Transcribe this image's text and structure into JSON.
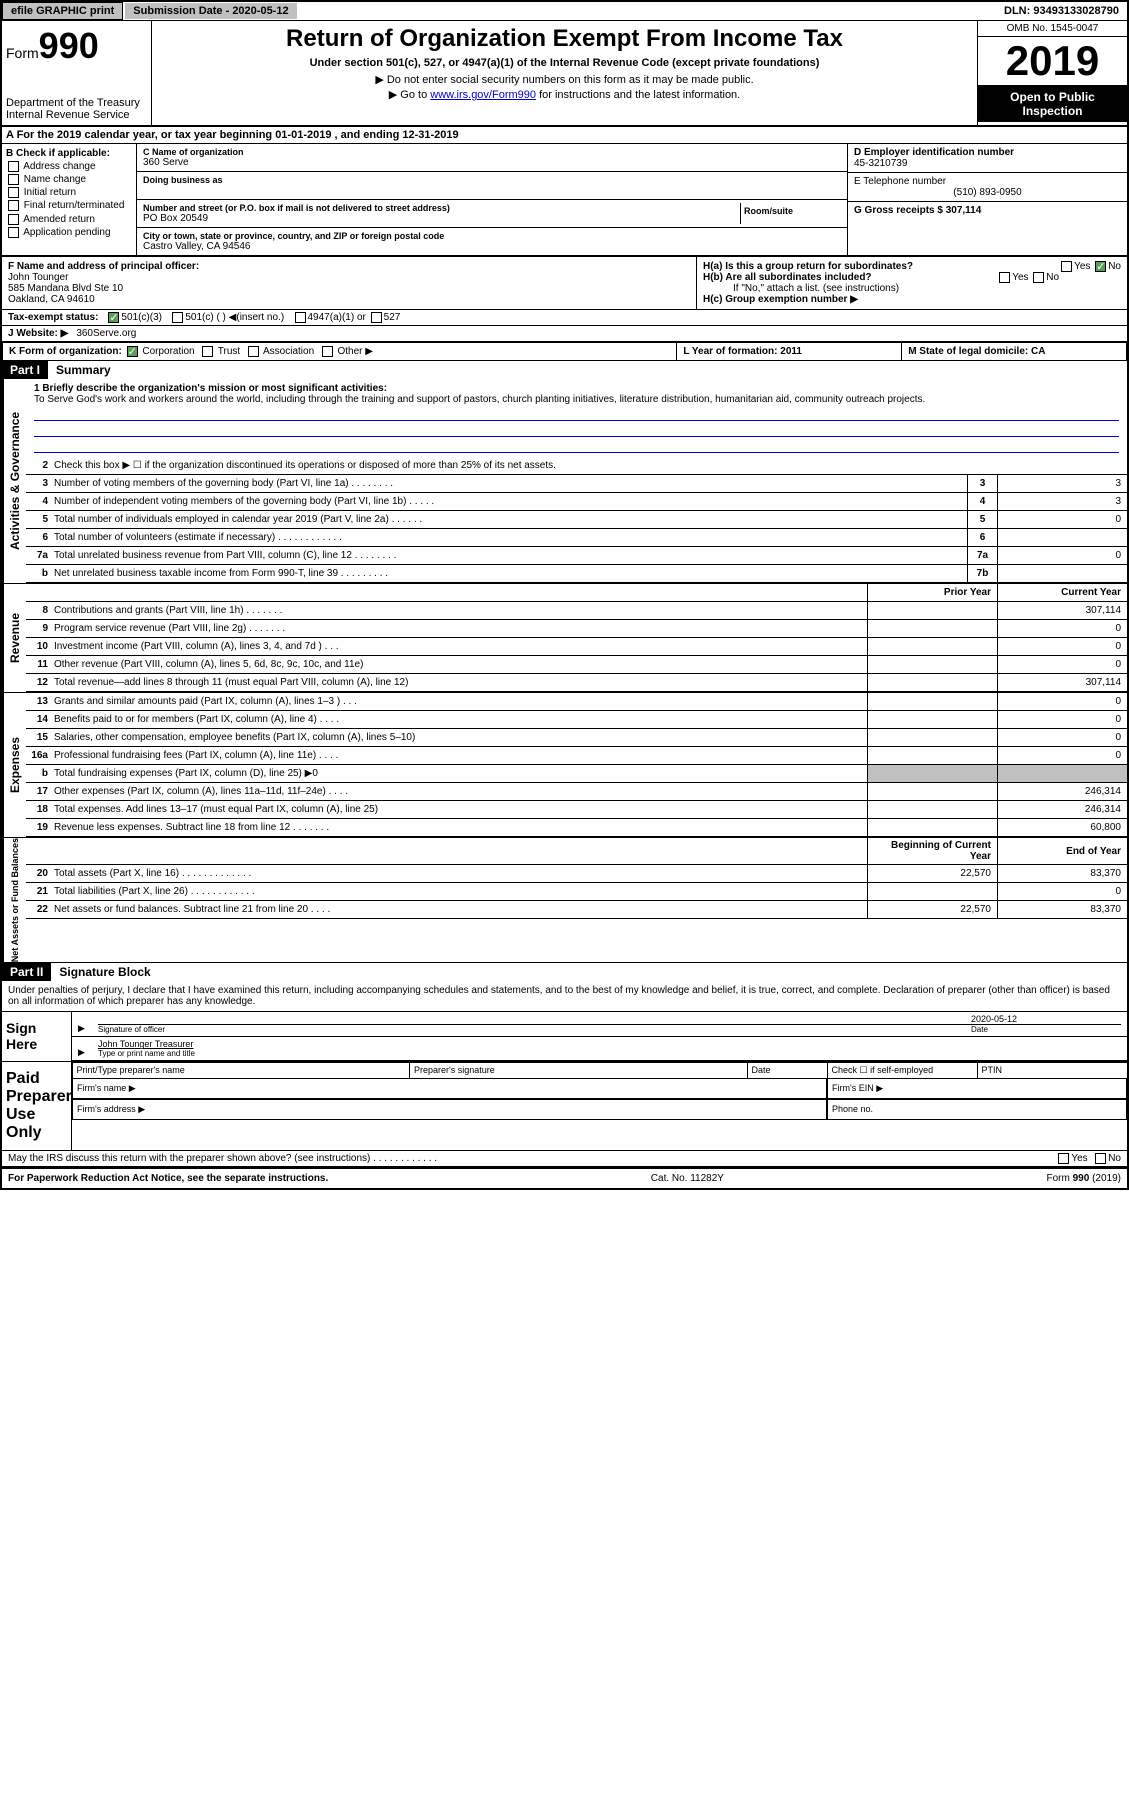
{
  "topbar": {
    "efile": "efile GRAPHIC print",
    "submission_label": "Submission Date - 2020-05-12",
    "dln": "DLN: 93493133028790"
  },
  "header": {
    "form_label": "Form",
    "form_number": "990",
    "dept1": "Department of the Treasury",
    "dept2": "Internal Revenue Service",
    "title": "Return of Organization Exempt From Income Tax",
    "subtitle": "Under section 501(c), 527, or 4947(a)(1) of the Internal Revenue Code (except private foundations)",
    "instr1": "▶ Do not enter social security numbers on this form as it may be made public.",
    "instr2_pre": "▶ Go to ",
    "instr2_link": "www.irs.gov/Form990",
    "instr2_post": " for instructions and the latest information.",
    "omb": "OMB No. 1545-0047",
    "year": "2019",
    "open_public": "Open to Public Inspection"
  },
  "section_a": "A   For the 2019 calendar year, or tax year beginning 01-01-2019    , and ending 12-31-2019",
  "col_b": {
    "header": "B Check if applicable:",
    "items": [
      "Address change",
      "Name change",
      "Initial return",
      "Final return/terminated",
      "Amended return",
      "Application pending"
    ]
  },
  "col_c": {
    "name_label": "C Name of organization",
    "name": "360 Serve",
    "dba_label": "Doing business as",
    "addr_label": "Number and street (or P.O. box if mail is not delivered to street address)",
    "addr": "PO Box 20549",
    "room_label": "Room/suite",
    "city_label": "City or town, state or province, country, and ZIP or foreign postal code",
    "city": "Castro Valley, CA  94546"
  },
  "col_d": {
    "ein_label": "D Employer identification number",
    "ein": "45-3210739",
    "phone_label": "E Telephone number",
    "phone": "(510) 893-0950",
    "gross_label": "G Gross receipts $ 307,114"
  },
  "row_f": {
    "label": "F  Name and address of principal officer:",
    "name": "John Tounger",
    "addr1": "585 Mandana Blvd Ste 10",
    "addr2": "Oakland, CA  94610",
    "ha": "H(a)  Is this a group return for subordinates?",
    "hb": "H(b)  Are all subordinates included?",
    "hb_note": "If \"No,\" attach a list. (see instructions)",
    "hc": "H(c)  Group exemption number ▶",
    "yes": "Yes",
    "no": "No"
  },
  "tax_exempt": {
    "label": "Tax-exempt status:",
    "opt1": "501(c)(3)",
    "opt2": "501(c) (   ) ◀(insert no.)",
    "opt3": "4947(a)(1) or",
    "opt4": "527"
  },
  "website": {
    "label": "J   Website: ▶",
    "value": "360Serve.org"
  },
  "row_k": {
    "label": "K Form of organization:",
    "opts": [
      "Corporation",
      "Trust",
      "Association",
      "Other ▶"
    ],
    "l_label": "L Year of formation: 2011",
    "m_label": "M State of legal domicile: CA"
  },
  "part1": {
    "header": "Part I",
    "title": "Summary",
    "sidebar1": "Activities & Governance",
    "sidebar2": "Revenue",
    "sidebar3": "Expenses",
    "sidebar4": "Net Assets or Fund Balances",
    "line1_label": "1  Briefly describe the organization's mission or most significant activities:",
    "mission": "To Serve God's work and workers around the world, including through the training and support of pastors, church planting initiatives, literature distribution, humanitarian aid, community outreach projects.",
    "line2": "Check this box ▶ ☐  if the organization discontinued its operations or disposed of more than 25% of its net assets.",
    "lines_gov": [
      {
        "n": "3",
        "d": "Number of voting members of the governing body (Part VI, line 1a)   .   .   .   .   .   .   .   .",
        "b": "3",
        "v": "3"
      },
      {
        "n": "4",
        "d": "Number of independent voting members of the governing body (Part VI, line 1b)   .   .   .   .   .",
        "b": "4",
        "v": "3"
      },
      {
        "n": "5",
        "d": "Total number of individuals employed in calendar year 2019 (Part V, line 2a)   .   .   .   .   .   .",
        "b": "5",
        "v": "0"
      },
      {
        "n": "6",
        "d": "Total number of volunteers (estimate if necessary)   .   .   .   .   .   .   .   .   .   .   .   .",
        "b": "6",
        "v": ""
      },
      {
        "n": "7a",
        "d": "Total unrelated business revenue from Part VIII, column (C), line 12   .   .   .   .   .   .   .   .",
        "b": "7a",
        "v": "0"
      },
      {
        "n": "b",
        "d": "Net unrelated business taxable income from Form 990-T, line 39   .   .   .   .   .   .   .   .   .",
        "b": "7b",
        "v": ""
      }
    ],
    "col_prior": "Prior Year",
    "col_current": "Current Year",
    "lines_rev": [
      {
        "n": "8",
        "d": "Contributions and grants (Part VIII, line 1h)   .   .   .   .   .   .   .",
        "p": "",
        "c": "307,114"
      },
      {
        "n": "9",
        "d": "Program service revenue (Part VIII, line 2g)   .   .   .   .   .   .   .",
        "p": "",
        "c": "0"
      },
      {
        "n": "10",
        "d": "Investment income (Part VIII, column (A), lines 3, 4, and 7d )   .   .   .",
        "p": "",
        "c": "0"
      },
      {
        "n": "11",
        "d": "Other revenue (Part VIII, column (A), lines 5, 6d, 8c, 9c, 10c, and 11e)",
        "p": "",
        "c": "0"
      },
      {
        "n": "12",
        "d": "Total revenue—add lines 8 through 11 (must equal Part VIII, column (A), line 12)",
        "p": "",
        "c": "307,114"
      }
    ],
    "lines_exp": [
      {
        "n": "13",
        "d": "Grants and similar amounts paid (Part IX, column (A), lines 1–3 )   .   .   .",
        "p": "",
        "c": "0"
      },
      {
        "n": "14",
        "d": "Benefits paid to or for members (Part IX, column (A), line 4)   .   .   .   .",
        "p": "",
        "c": "0"
      },
      {
        "n": "15",
        "d": "Salaries, other compensation, employee benefits (Part IX, column (A), lines 5–10)",
        "p": "",
        "c": "0"
      },
      {
        "n": "16a",
        "d": "Professional fundraising fees (Part IX, column (A), line 11e)   .   .   .   .",
        "p": "",
        "c": "0"
      },
      {
        "n": "b",
        "d": "Total fundraising expenses (Part IX, column (D), line 25) ▶0",
        "p": "gray",
        "c": "gray"
      },
      {
        "n": "17",
        "d": "Other expenses (Part IX, column (A), lines 11a–11d, 11f–24e)   .   .   .   .",
        "p": "",
        "c": "246,314"
      },
      {
        "n": "18",
        "d": "Total expenses. Add lines 13–17 (must equal Part IX, column (A), line 25)",
        "p": "",
        "c": "246,314"
      },
      {
        "n": "19",
        "d": "Revenue less expenses. Subtract line 18 from line 12   .   .   .   .   .   .   .",
        "p": "",
        "c": "60,800"
      }
    ],
    "col_begin": "Beginning of Current Year",
    "col_end": "End of Year",
    "lines_net": [
      {
        "n": "20",
        "d": "Total assets (Part X, line 16)   .   .   .   .   .   .   .   .   .   .   .   .   .",
        "p": "22,570",
        "c": "83,370"
      },
      {
        "n": "21",
        "d": "Total liabilities (Part X, line 26)   .   .   .   .   .   .   .   .   .   .   .   .",
        "p": "",
        "c": "0"
      },
      {
        "n": "22",
        "d": "Net assets or fund balances. Subtract line 21 from line 20   .   .   .   .",
        "p": "22,570",
        "c": "83,370"
      }
    ]
  },
  "part2": {
    "header": "Part II",
    "title": "Signature Block",
    "intro": "Under penalties of perjury, I declare that I have examined this return, including accompanying schedules and statements, and to the best of my knowledge and belief, it is true, correct, and complete. Declaration of preparer (other than officer) is based on all information of which preparer has any knowledge.",
    "sign_here": "Sign Here",
    "sig_officer": "Signature of officer",
    "date": "Date",
    "date_val": "2020-05-12",
    "name_title": "John Tounger  Treasurer",
    "type_name": "Type or print name and title",
    "paid": "Paid Preparer Use Only",
    "prep_name": "Print/Type preparer's name",
    "prep_sig": "Preparer's signature",
    "prep_date": "Date",
    "check_self": "Check ☐  if self-employed",
    "ptin": "PTIN",
    "firm_name": "Firm's name   ▶",
    "firm_ein": "Firm's EIN ▶",
    "firm_addr": "Firm's address ▶",
    "phone": "Phone no.",
    "discuss": "May the IRS discuss this return with the preparer shown above? (see instructions)   .   .   .   .   .   .   .   .   .   .   .   ."
  },
  "footer": {
    "left": "For Paperwork Reduction Act Notice, see the separate instructions.",
    "center": "Cat. No. 11282Y",
    "right": "Form 990 (2019)"
  }
}
